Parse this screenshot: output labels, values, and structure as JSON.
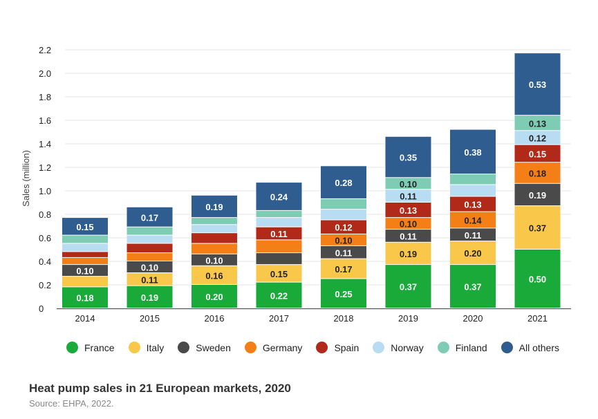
{
  "chart_data": {
    "type": "bar",
    "stacked": true,
    "categories": [
      "2014",
      "2015",
      "2016",
      "2017",
      "2018",
      "2019",
      "2020",
      "2021"
    ],
    "ylabel": "Sales (million)",
    "ylim": [
      0,
      2.2
    ],
    "yticks": [
      "0",
      "0.2",
      "0.4",
      "0.6",
      "0.8",
      "1.0",
      "1.2",
      "1.4",
      "1.6",
      "1.8",
      "2.0",
      "2.2"
    ],
    "grid": true,
    "legend_position": "bottom",
    "series": [
      {
        "name": "France",
        "color": "#1aaa3a",
        "values": [
          0.18,
          0.19,
          0.2,
          0.22,
          0.25,
          0.37,
          0.37,
          0.5
        ],
        "labels": [
          "0.18",
          "0.19",
          "0.20",
          "0.22",
          "0.25",
          "0.37",
          "0.37",
          "0.50"
        ]
      },
      {
        "name": "Italy",
        "color": "#f9c84a",
        "values": [
          0.09,
          0.11,
          0.16,
          0.15,
          0.17,
          0.19,
          0.2,
          0.37
        ],
        "labels": [
          "",
          "0.11",
          "0.16",
          "0.15",
          "0.17",
          "0.19",
          "0.20",
          "0.37"
        ]
      },
      {
        "name": "Sweden",
        "color": "#4a4a4a",
        "values": [
          0.1,
          0.1,
          0.1,
          0.1,
          0.11,
          0.11,
          0.11,
          0.19
        ],
        "labels": [
          "0.10",
          "0.10",
          "0.10",
          "",
          "0.11",
          "0.11",
          "0.11",
          "0.19"
        ]
      },
      {
        "name": "Germany",
        "color": "#f57f17",
        "values": [
          0.06,
          0.07,
          0.09,
          0.11,
          0.1,
          0.1,
          0.14,
          0.18
        ],
        "labels": [
          "",
          "",
          "",
          "",
          "0.10",
          "0.10",
          "0.14",
          "0.18"
        ]
      },
      {
        "name": "Spain",
        "color": "#b12918",
        "values": [
          0.05,
          0.08,
          0.09,
          0.11,
          0.12,
          0.13,
          0.13,
          0.15
        ],
        "labels": [
          "",
          "",
          "",
          "0.11",
          "0.12",
          "0.13",
          "0.13",
          "0.15"
        ]
      },
      {
        "name": "Norway",
        "color": "#b8dcf2",
        "values": [
          0.07,
          0.07,
          0.07,
          0.08,
          0.09,
          0.11,
          0.1,
          0.12
        ],
        "labels": [
          "",
          "",
          "",
          "",
          "",
          "0.11",
          "",
          "0.12"
        ]
      },
      {
        "name": "Finland",
        "color": "#7fccb5",
        "values": [
          0.07,
          0.07,
          0.06,
          0.06,
          0.09,
          0.1,
          0.09,
          0.13
        ],
        "labels": [
          "",
          "",
          "",
          "",
          "",
          "0.10",
          "",
          "0.13"
        ]
      },
      {
        "name": "All others",
        "color": "#2f5d8f",
        "values": [
          0.15,
          0.17,
          0.19,
          0.24,
          0.28,
          0.35,
          0.38,
          0.53
        ],
        "labels": [
          "0.15",
          "0.17",
          "0.19",
          "0.24",
          "0.28",
          "0.35",
          "0.38",
          "0.53"
        ]
      }
    ]
  },
  "caption": {
    "title": "Heat pump sales in 21 European markets, 2020",
    "source": "Source: EHPA, 2022."
  }
}
